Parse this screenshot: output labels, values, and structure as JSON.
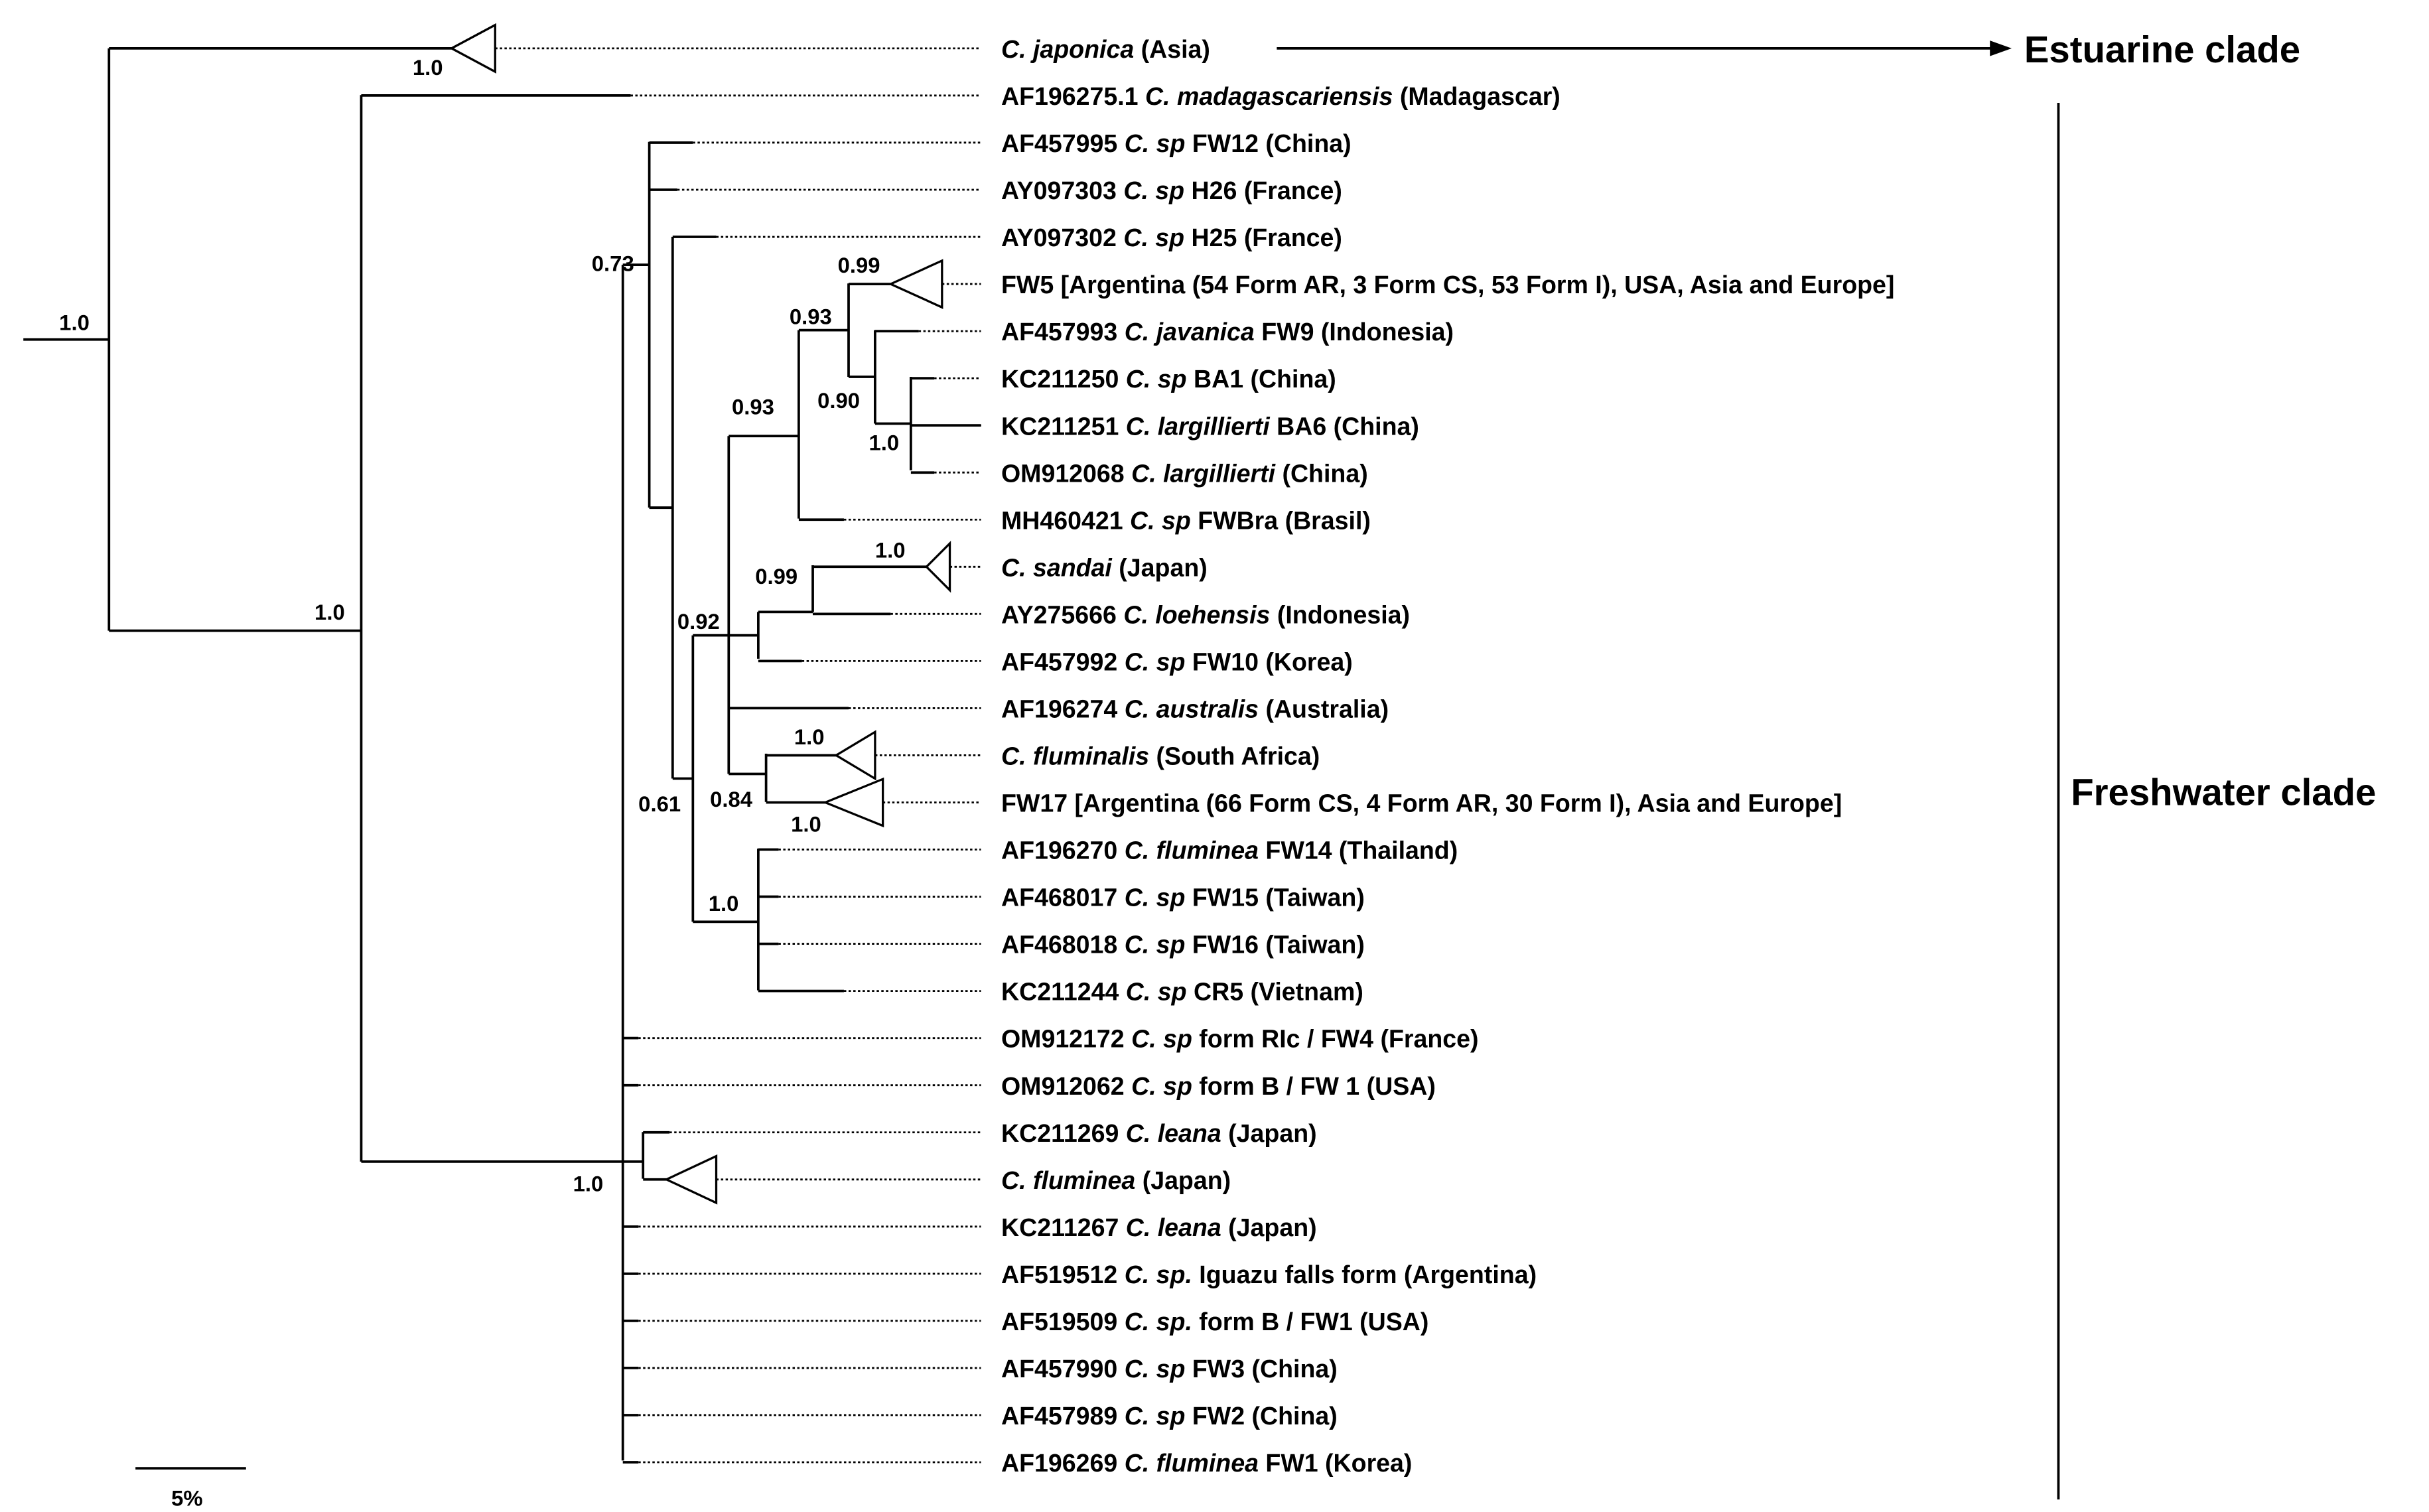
{
  "leaves": [
    [
      {
        "t": "C. japonica",
        "i": true
      },
      {
        "t": " (Asia)"
      }
    ],
    [
      {
        "t": "AF196275.1 "
      },
      {
        "t": "C. madagascariensis",
        "i": true
      },
      {
        "t": " (Madagascar)"
      }
    ],
    [
      {
        "t": "AF457995 "
      },
      {
        "t": "C. sp",
        "i": true
      },
      {
        "t": " FW12 (China)"
      }
    ],
    [
      {
        "t": "AY097303 "
      },
      {
        "t": "C. sp",
        "i": true
      },
      {
        "t": " H26 (France)"
      }
    ],
    [
      {
        "t": "AY097302 "
      },
      {
        "t": "C. sp",
        "i": true
      },
      {
        "t": " H25 (France)"
      }
    ],
    [
      {
        "t": "FW5 [Argentina (54 Form AR, 3 Form CS, 53 Form I), USA, Asia and Europe]"
      }
    ],
    [
      {
        "t": "AF457993 "
      },
      {
        "t": "C. javanica",
        "i": true
      },
      {
        "t": " FW9 (Indonesia)"
      }
    ],
    [
      {
        "t": "KC211250 "
      },
      {
        "t": "C. sp",
        "i": true
      },
      {
        "t": " BA1 (China)"
      }
    ],
    [
      {
        "t": "KC211251 "
      },
      {
        "t": "C. largillierti",
        "i": true
      },
      {
        "t": " BA6 (China)"
      }
    ],
    [
      {
        "t": "OM912068 "
      },
      {
        "t": "C. largillierti",
        "i": true
      },
      {
        "t": " (China)"
      }
    ],
    [
      {
        "t": "MH460421 "
      },
      {
        "t": "C. sp",
        "i": true
      },
      {
        "t": " FWBra (Brasil)"
      }
    ],
    [
      {
        "t": "C. sandai",
        "i": true
      },
      {
        "t": " (Japan)"
      }
    ],
    [
      {
        "t": "AY275666 "
      },
      {
        "t": "C. loehensis",
        "i": true
      },
      {
        "t": " (Indonesia)"
      }
    ],
    [
      {
        "t": "AF457992 "
      },
      {
        "t": "C. sp",
        "i": true
      },
      {
        "t": " FW10 (Korea)"
      }
    ],
    [
      {
        "t": "AF196274 "
      },
      {
        "t": "C. australis",
        "i": true
      },
      {
        "t": " (Australia)"
      }
    ],
    [
      {
        "t": "C. fluminalis",
        "i": true
      },
      {
        "t": " (South Africa)"
      }
    ],
    [
      {
        "t": "FW17 [Argentina (66 Form CS, 4 Form AR, 30 Form I), Asia and Europe]"
      }
    ],
    [
      {
        "t": "AF196270 "
      },
      {
        "t": "C. fluminea",
        "i": true
      },
      {
        "t": " FW14 (Thailand)"
      }
    ],
    [
      {
        "t": "AF468017 "
      },
      {
        "t": "C. sp",
        "i": true
      },
      {
        "t": " FW15 (Taiwan)"
      }
    ],
    [
      {
        "t": "AF468018 "
      },
      {
        "t": "C. sp",
        "i": true
      },
      {
        "t": " FW16 (Taiwan)"
      }
    ],
    [
      {
        "t": "KC211244 "
      },
      {
        "t": "C. sp",
        "i": true
      },
      {
        "t": " CR5 (Vietnam)"
      }
    ],
    [
      {
        "t": "OM912172 "
      },
      {
        "t": "C. sp",
        "i": true
      },
      {
        "t": " form RIc / FW4 (France)"
      }
    ],
    [
      {
        "t": "OM912062 "
      },
      {
        "t": "C. sp",
        "i": true
      },
      {
        "t": " form B / FW 1 (USA)"
      }
    ],
    [
      {
        "t": "KC211269 "
      },
      {
        "t": "C. leana",
        "i": true
      },
      {
        "t": " (Japan)"
      }
    ],
    [
      {
        "t": "C. fluminea",
        "i": true
      },
      {
        "t": " (Japan)"
      }
    ],
    [
      {
        "t": "KC211267 "
      },
      {
        "t": "C. leana",
        "i": true
      },
      {
        "t": " (Japan)"
      }
    ],
    [
      {
        "t": "AF519512 "
      },
      {
        "t": "C. sp.",
        "i": true
      },
      {
        "t": " Iguazu falls form (Argentina)"
      }
    ],
    [
      {
        "t": "AF519509 "
      },
      {
        "t": "C. sp.",
        "i": true
      },
      {
        "t": " form B / FW1 (USA)"
      }
    ],
    [
      {
        "t": "AF457990 "
      },
      {
        "t": "C. sp",
        "i": true
      },
      {
        "t": " FW3 (China)"
      }
    ],
    [
      {
        "t": "AF457989 "
      },
      {
        "t": "C. sp",
        "i": true
      },
      {
        "t": " FW2 (China)"
      }
    ],
    [
      {
        "t": "AF196269 "
      },
      {
        "t": "C. fluminea",
        "i": true
      },
      {
        "t": " FW1 (Korea)"
      }
    ]
  ],
  "support_values": [
    "1.0",
    "1.0",
    "1.0",
    "1.0",
    "0.73",
    "0.61",
    "0.92",
    "0.93",
    "0.93",
    "0.99",
    "0.90",
    "1.0",
    "0.99",
    "1.0",
    "0.84",
    "1.0",
    "1.0",
    "1.0"
  ],
  "clades": {
    "estuarine": "Estuarine clade",
    "freshwater": "Freshwater clade"
  },
  "scale_bar": "5%"
}
